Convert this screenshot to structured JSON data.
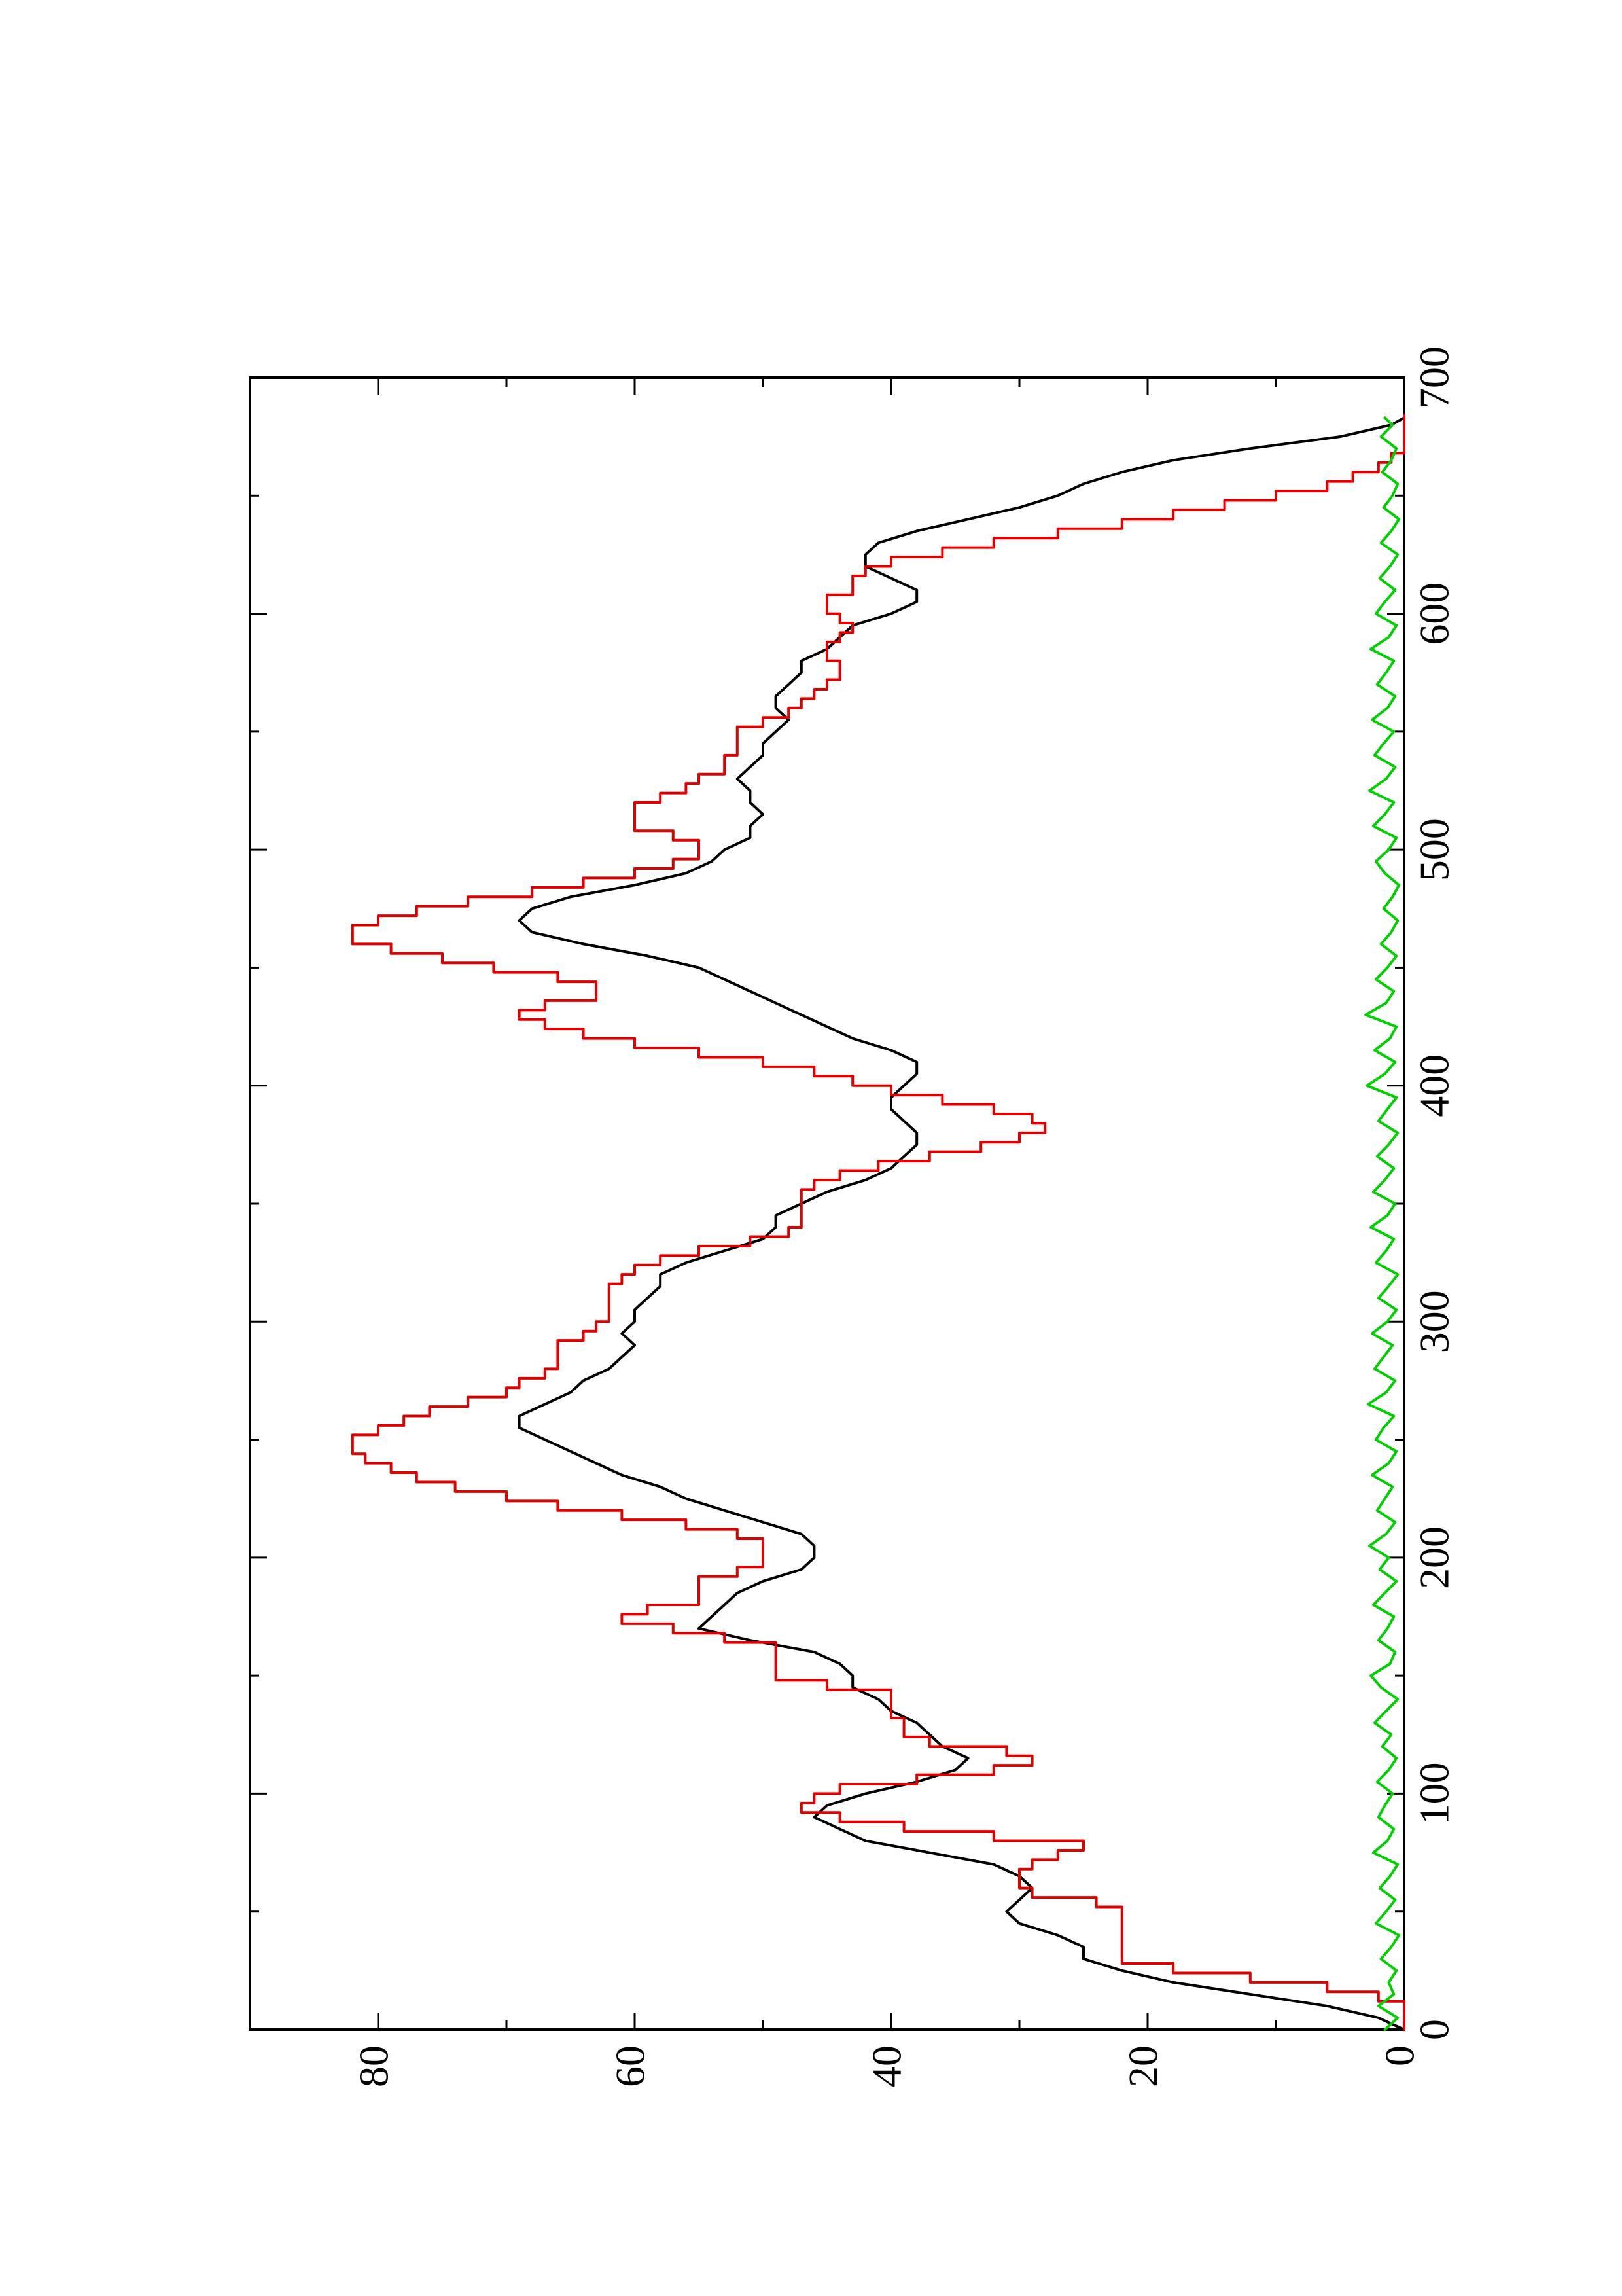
{
  "chart_data": {
    "type": "line",
    "orientation": "rotated 90 degrees counter-clockwise (page in landscape)",
    "title": "",
    "xlabel": "",
    "ylabel": "",
    "xlim": [
      0,
      700
    ],
    "ylim": [
      0,
      90
    ],
    "x_ticks": [
      0,
      100,
      200,
      300,
      400,
      500,
      600,
      700
    ],
    "x_tick_labels": [
      "0",
      "100",
      "200",
      "300",
      "400",
      "500",
      "600",
      "700"
    ],
    "x_minor_ticks": [
      50,
      150,
      250,
      350,
      450,
      550,
      650
    ],
    "y_ticks": [
      0,
      20,
      40,
      60,
      80
    ],
    "y_tick_labels": [
      "0",
      "20",
      "40",
      "60",
      "80"
    ],
    "y_minor_ticks": [
      10,
      30,
      50,
      70
    ],
    "grid": false,
    "legend": "none",
    "colors": {
      "black": "#000000",
      "red": "#e00000",
      "green": "#00d000"
    },
    "series": [
      {
        "color": "#000000",
        "style": "smooth",
        "x": [
          0,
          5,
          10,
          15,
          20,
          25,
          30,
          35,
          40,
          45,
          50,
          55,
          60,
          65,
          70,
          75,
          80,
          85,
          90,
          95,
          100,
          105,
          110,
          115,
          120,
          125,
          130,
          135,
          140,
          145,
          150,
          155,
          160,
          165,
          170,
          175,
          180,
          185,
          190,
          195,
          200,
          205,
          210,
          215,
          220,
          225,
          230,
          235,
          240,
          245,
          250,
          255,
          260,
          265,
          270,
          275,
          280,
          285,
          290,
          295,
          300,
          305,
          310,
          315,
          320,
          325,
          330,
          335,
          340,
          345,
          350,
          355,
          360,
          365,
          370,
          375,
          380,
          385,
          390,
          395,
          400,
          405,
          410,
          415,
          420,
          425,
          430,
          435,
          440,
          445,
          450,
          455,
          460,
          465,
          470,
          475,
          480,
          485,
          490,
          495,
          500,
          505,
          510,
          515,
          520,
          525,
          530,
          535,
          540,
          545,
          550,
          555,
          560,
          565,
          570,
          575,
          580,
          585,
          590,
          595,
          600,
          605,
          610,
          615,
          620,
          625,
          630,
          635,
          640,
          645,
          650,
          655,
          660,
          665,
          670,
          675,
          680,
          683
        ],
        "y": [
          0,
          2,
          6,
          12,
          18,
          22,
          25,
          25,
          27,
          30,
          31,
          30,
          29,
          30,
          32,
          37,
          42,
          44,
          46,
          45,
          42,
          38,
          35,
          34,
          36,
          37,
          38,
          40,
          41,
          43,
          43,
          44,
          46,
          51,
          55,
          54,
          53,
          52,
          50,
          47,
          46,
          46,
          47,
          50,
          53,
          56,
          58,
          61,
          63,
          65,
          67,
          69,
          69,
          67,
          65,
          64,
          62,
          61,
          60,
          61,
          60,
          60,
          59,
          58,
          58,
          56,
          53,
          50,
          49,
          49,
          47,
          45,
          42,
          40,
          39,
          38,
          38,
          39,
          40,
          40,
          39,
          38,
          38,
          40,
          43,
          45,
          47,
          49,
          51,
          53,
          55,
          59,
          64,
          68,
          69,
          68,
          65,
          60,
          56,
          54,
          53,
          51,
          51,
          50,
          51,
          51,
          52,
          51,
          50,
          50,
          49,
          48,
          49,
          49,
          48,
          47,
          47,
          45,
          44,
          43,
          40,
          38,
          38,
          40,
          42,
          42,
          41,
          38,
          34,
          30,
          27,
          25,
          22,
          18,
          12,
          5,
          1,
          0
        ]
      },
      {
        "color": "#e00000",
        "style": "steps",
        "x": [
          0,
          8,
          12,
          16,
          20,
          24,
          28,
          32,
          36,
          40,
          44,
          48,
          52,
          56,
          60,
          64,
          68,
          72,
          76,
          80,
          84,
          88,
          92,
          96,
          100,
          104,
          108,
          112,
          116,
          120,
          124,
          128,
          132,
          136,
          140,
          144,
          148,
          152,
          156,
          160,
          164,
          168,
          172,
          176,
          180,
          184,
          188,
          192,
          196,
          200,
          204,
          208,
          212,
          216,
          220,
          224,
          228,
          232,
          236,
          240,
          244,
          248,
          252,
          256,
          260,
          264,
          268,
          272,
          276,
          280,
          284,
          288,
          292,
          296,
          300,
          304,
          308,
          312,
          316,
          320,
          324,
          328,
          332,
          336,
          340,
          344,
          348,
          352,
          356,
          360,
          364,
          368,
          372,
          376,
          380,
          384,
          388,
          392,
          396,
          400,
          404,
          408,
          412,
          416,
          420,
          424,
          428,
          432,
          436,
          440,
          444,
          448,
          452,
          456,
          460,
          464,
          468,
          472,
          476,
          480,
          484,
          488,
          492,
          496,
          500,
          504,
          508,
          512,
          516,
          520,
          524,
          528,
          532,
          536,
          540,
          544,
          548,
          552,
          556,
          560,
          564,
          568,
          572,
          576,
          580,
          584,
          588,
          592,
          596,
          600,
          604,
          608,
          612,
          616,
          620,
          624,
          628,
          632,
          636,
          640,
          644,
          648,
          652,
          656,
          660,
          664,
          668,
          672,
          676,
          680,
          684
        ],
        "y": [
          0,
          0,
          2,
          6,
          12,
          18,
          22,
          22,
          22,
          22,
          22,
          22,
          24,
          29,
          30,
          30,
          29,
          27,
          25,
          32,
          39,
          44,
          47,
          46,
          44,
          38,
          32,
          29,
          31,
          37,
          39,
          39,
          40,
          40,
          40,
          45,
          49,
          49,
          49,
          49,
          53,
          57,
          61,
          59,
          55,
          55,
          55,
          52,
          50,
          50,
          50,
          52,
          56,
          61,
          66,
          70,
          74,
          77,
          79,
          81,
          82,
          82,
          80,
          78,
          76,
          73,
          70,
          69,
          67,
          66,
          66,
          66,
          64,
          63,
          62,
          62,
          62,
          62,
          61,
          60,
          58,
          55,
          51,
          48,
          47,
          47,
          47,
          47,
          46,
          44,
          41,
          37,
          33,
          30,
          28,
          29,
          32,
          36,
          40,
          43,
          46,
          50,
          55,
          60,
          64,
          67,
          69,
          67,
          63,
          63,
          66,
          71,
          75,
          79,
          82,
          82,
          80,
          77,
          73,
          68,
          64,
          60,
          57,
          55,
          55,
          57,
          60,
          60,
          60,
          58,
          56,
          55,
          53,
          53,
          52,
          52,
          52,
          50,
          48,
          47,
          46,
          45,
          44,
          44,
          45,
          45,
          44,
          43,
          44,
          45,
          45,
          43,
          43,
          42,
          40,
          36,
          32,
          27,
          22,
          18,
          14,
          10,
          6,
          4,
          2,
          1,
          0,
          0,
          0,
          0,
          0
        ]
      },
      {
        "color": "#00d000",
        "style": "noise",
        "x": [
          0,
          5,
          10,
          15,
          20,
          25,
          30,
          35,
          40,
          45,
          50,
          55,
          60,
          65,
          70,
          75,
          80,
          85,
          90,
          95,
          100,
          105,
          110,
          115,
          120,
          125,
          130,
          135,
          140,
          145,
          150,
          155,
          160,
          165,
          170,
          175,
          180,
          185,
          190,
          195,
          200,
          205,
          210,
          215,
          220,
          225,
          230,
          235,
          240,
          245,
          250,
          255,
          260,
          265,
          270,
          275,
          280,
          285,
          290,
          295,
          300,
          305,
          310,
          315,
          320,
          325,
          330,
          335,
          340,
          345,
          350,
          355,
          360,
          365,
          370,
          375,
          380,
          385,
          390,
          395,
          400,
          405,
          410,
          415,
          420,
          425,
          430,
          435,
          440,
          445,
          450,
          455,
          460,
          465,
          470,
          475,
          480,
          485,
          490,
          495,
          500,
          505,
          510,
          515,
          520,
          525,
          530,
          535,
          540,
          545,
          550,
          555,
          560,
          565,
          570,
          575,
          580,
          585,
          590,
          595,
          600,
          605,
          610,
          615,
          620,
          625,
          630,
          635,
          640,
          645,
          650,
          655,
          660,
          665,
          670,
          675,
          680,
          683
        ],
        "y": [
          1.5,
          0.5,
          2.0,
          0.8,
          1.2,
          0.6,
          1.8,
          1.0,
          0.4,
          2.2,
          1.4,
          0.7,
          1.9,
          1.1,
          0.5,
          2.4,
          1.3,
          0.8,
          2.0,
          1.5,
          0.9,
          2.1,
          1.2,
          0.6,
          1.7,
          1.0,
          2.3,
          1.4,
          0.5,
          1.8,
          2.6,
          1.1,
          0.7,
          2.0,
          1.3,
          0.8,
          2.4,
          1.5,
          0.6,
          1.9,
          1.2,
          2.7,
          1.4,
          0.7,
          2.1,
          1.5,
          0.9,
          2.5,
          1.2,
          0.6,
          2.2,
          1.6,
          0.8,
          2.8,
          1.4,
          0.7,
          2.3,
          1.6,
          0.9,
          2.5,
          1.3,
          0.6,
          2.0,
          1.2,
          0.5,
          2.2,
          1.4,
          0.8,
          2.6,
          1.3,
          0.7,
          2.4,
          1.5,
          0.8,
          2.1,
          1.2,
          0.5,
          2.0,
          1.3,
          0.6,
          2.9,
          1.5,
          0.7,
          2.3,
          1.1,
          0.6,
          3.0,
          1.4,
          0.8,
          2.2,
          1.3,
          0.6,
          1.8,
          1.0,
          0.5,
          1.6,
          0.9,
          0.4,
          1.5,
          2.2,
          1.2,
          0.6,
          2.4,
          1.5,
          0.8,
          2.7,
          1.4,
          0.7,
          2.3,
          1.6,
          0.8,
          2.5,
          1.3,
          0.7,
          2.1,
          1.4,
          0.8,
          2.6,
          1.2,
          0.6,
          2.2,
          1.5,
          0.7,
          1.9,
          1.1,
          0.5,
          1.8,
          1.0,
          0.4,
          1.6,
          0.9,
          0.5,
          1.7,
          1.0,
          0.6,
          1.8,
          0.9,
          1.5
        ]
      }
    ]
  }
}
